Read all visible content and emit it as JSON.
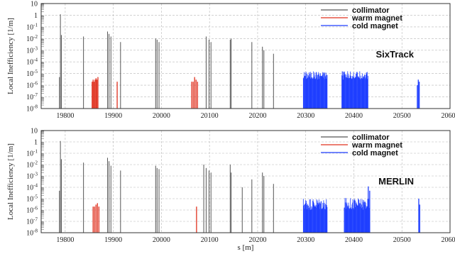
{
  "chart_data": [
    {
      "type": "bar",
      "code_label": "SixTrack",
      "ylabel": "Local Inefficiency [1/m]",
      "xlabel": "",
      "xlim": [
        19750,
        20600
      ],
      "x_ticks": [
        19800,
        19900,
        20000,
        20100,
        20200,
        20300,
        20400,
        20500,
        20600
      ],
      "y_scale": "log",
      "ylim": [
        1e-08,
        10
      ],
      "y_ticks": [
        {
          "v": 10,
          "label": "10"
        },
        {
          "v": 1,
          "label": "1"
        },
        {
          "v": 0.1,
          "label": "10-1"
        },
        {
          "v": 0.01,
          "label": "10-2"
        },
        {
          "v": 0.001,
          "label": "10-3"
        },
        {
          "v": 0.0001,
          "label": "10-4"
        },
        {
          "v": 1e-05,
          "label": "10-5"
        },
        {
          "v": 1e-06,
          "label": "10-6"
        },
        {
          "v": 1e-07,
          "label": "10-7"
        },
        {
          "v": 1e-08,
          "label": "10-8"
        }
      ],
      "grid": true,
      "legend_position": "top-right",
      "series": [
        {
          "name": "collimator",
          "color": "#555555",
          "points": [
            [
              19788,
              5e-06
            ],
            [
              19790,
              1.2
            ],
            [
              19792,
              0.02
            ],
            [
              19838,
              0.015
            ],
            [
              19888,
              0.04
            ],
            [
              19891,
              0.025
            ],
            [
              19895,
              0.015
            ],
            [
              19915,
              0.005
            ],
            [
              19988,
              0.01
            ],
            [
              19991,
              0.008
            ],
            [
              19995,
              0.005
            ],
            [
              20093,
              0.015
            ],
            [
              20099,
              0.008
            ],
            [
              20103,
              0.005
            ],
            [
              20143,
              0.008
            ],
            [
              20145,
              0.01
            ],
            [
              20188,
              0.005
            ],
            [
              20210,
              0.002
            ],
            [
              20213,
              0.001
            ],
            [
              20233,
              0.0005
            ]
          ]
        },
        {
          "name": "warm magnet",
          "color": "#e0301e",
          "points": [
            [
              19856,
              2e-06
            ],
            [
              19858,
              3e-06
            ],
            [
              19860,
              2e-06
            ],
            [
              19862,
              3e-06
            ],
            [
              19864,
              4e-06
            ],
            [
              19866,
              3e-06
            ],
            [
              19868,
              5e-06
            ],
            [
              19908,
              2e-06
            ],
            [
              20063,
              2e-06
            ],
            [
              20066,
              2e-06
            ],
            [
              20069,
              5e-06
            ],
            [
              20072,
              3e-06
            ],
            [
              20075,
              2e-06
            ]
          ]
        },
        {
          "name": "cold magnet",
          "color": "#1f3fff",
          "bands": [
            {
              "from": 20295,
              "to": 20345,
              "level_min": 3e-06,
              "level_max": 1.6e-05
            },
            {
              "from": 20375,
              "to": 20430,
              "level_min": 3e-06,
              "level_max": 1.6e-05
            }
          ],
          "points": [
            [
              20532,
              1e-06
            ],
            [
              20534,
              3e-06
            ],
            [
              20536,
              2e-06
            ]
          ]
        }
      ]
    },
    {
      "type": "bar",
      "code_label": "MERLIN",
      "ylabel": "Local Inefficiency [1/m]",
      "xlabel": "s [m]",
      "xlim": [
        19750,
        20600
      ],
      "x_ticks": [
        19800,
        19900,
        20000,
        20100,
        20200,
        20300,
        20400,
        20500,
        20600
      ],
      "y_scale": "log",
      "ylim": [
        1e-08,
        10
      ],
      "y_ticks": [
        {
          "v": 10,
          "label": "10"
        },
        {
          "v": 1,
          "label": "1"
        },
        {
          "v": 0.1,
          "label": "10-1"
        },
        {
          "v": 0.01,
          "label": "10-2"
        },
        {
          "v": 0.001,
          "label": "10-3"
        },
        {
          "v": 0.0001,
          "label": "10-4"
        },
        {
          "v": 1e-05,
          "label": "10-5"
        },
        {
          "v": 1e-06,
          "label": "10-6"
        },
        {
          "v": 1e-07,
          "label": "10-7"
        },
        {
          "v": 1e-08,
          "label": "10-8"
        }
      ],
      "grid": true,
      "legend_position": "top-right",
      "series": [
        {
          "name": "collimator",
          "color": "#555555",
          "points": [
            [
              19788,
              5e-05
            ],
            [
              19790,
              1.2
            ],
            [
              19792,
              0.03
            ],
            [
              19838,
              0.015
            ],
            [
              19888,
              0.04
            ],
            [
              19891,
              0.02
            ],
            [
              19895,
              0.008
            ],
            [
              19915,
              0.003
            ],
            [
              19988,
              0.008
            ],
            [
              19991,
              0.005
            ],
            [
              19995,
              0.004
            ],
            [
              20088,
              0.01
            ],
            [
              20093,
              0.005
            ],
            [
              20099,
              0.003
            ],
            [
              20103,
              0.002
            ],
            [
              20143,
              0.01
            ],
            [
              20145,
              0.002
            ],
            [
              20168,
              0.0001
            ],
            [
              20188,
              0.0005
            ],
            [
              20210,
              0.002
            ],
            [
              20213,
              0.001
            ],
            [
              20233,
              0.0002
            ]
          ]
        },
        {
          "name": "warm magnet",
          "color": "#e0301e",
          "points": [
            [
              19858,
              2e-06
            ],
            [
              19861,
              2e-06
            ],
            [
              19864,
              3e-06
            ],
            [
              19867,
              4e-06
            ],
            [
              19870,
              2e-06
            ],
            [
              20073,
              2e-06
            ]
          ]
        },
        {
          "name": "cold magnet",
          "color": "#1f3fff",
          "bands": [
            {
              "from": 20295,
              "to": 20345,
              "level_min": 1e-06,
              "level_max": 1.2e-05
            },
            {
              "from": 20380,
              "to": 20432,
              "level_min": 1e-06,
              "level_max": 1.2e-05
            }
          ],
          "points": [
            [
              20430,
              0.00012
            ],
            [
              20433,
              5e-05
            ],
            [
              20535,
              1e-05
            ],
            [
              20537,
              3e-06
            ]
          ]
        }
      ]
    }
  ]
}
